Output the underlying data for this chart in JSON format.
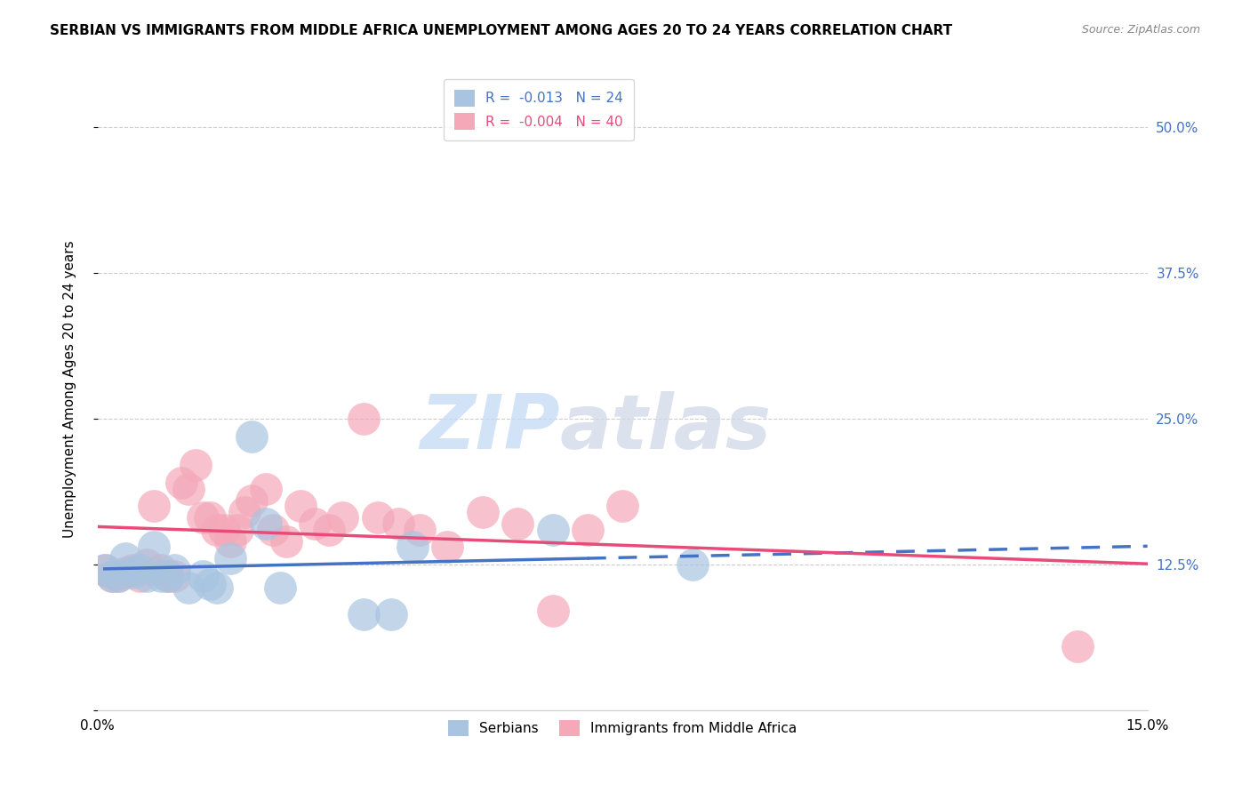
{
  "title": "SERBIAN VS IMMIGRANTS FROM MIDDLE AFRICA UNEMPLOYMENT AMONG AGES 20 TO 24 YEARS CORRELATION CHART",
  "source": "Source: ZipAtlas.com",
  "ylabel": "Unemployment Among Ages 20 to 24 years",
  "legend_r1": "R =  -0.013",
  "legend_n1": "N = 24",
  "legend_r2": "R =  -0.004",
  "legend_n2": "N = 40",
  "serbian_color": "#a8c4e0",
  "immigrant_color": "#f4a8b8",
  "trend_serbian_color": "#4472c4",
  "trend_immigrant_color": "#e84b7a",
  "watermark_zip": "ZIP",
  "watermark_atlas": "atlas",
  "serbians_x": [
    0.001,
    0.002,
    0.003,
    0.004,
    0.005,
    0.006,
    0.007,
    0.008,
    0.009,
    0.01,
    0.011,
    0.013,
    0.015,
    0.016,
    0.017,
    0.019,
    0.022,
    0.024,
    0.026,
    0.038,
    0.042,
    0.045,
    0.065,
    0.085
  ],
  "serbians_y": [
    0.12,
    0.115,
    0.115,
    0.13,
    0.118,
    0.12,
    0.115,
    0.14,
    0.115,
    0.115,
    0.12,
    0.105,
    0.115,
    0.108,
    0.105,
    0.13,
    0.235,
    0.16,
    0.105,
    0.082,
    0.082,
    0.14,
    0.155,
    0.125
  ],
  "immigrants_x": [
    0.001,
    0.002,
    0.003,
    0.004,
    0.005,
    0.006,
    0.007,
    0.008,
    0.009,
    0.01,
    0.011,
    0.012,
    0.013,
    0.014,
    0.015,
    0.016,
    0.017,
    0.018,
    0.019,
    0.02,
    0.021,
    0.022,
    0.024,
    0.025,
    0.027,
    0.029,
    0.031,
    0.033,
    0.035,
    0.038,
    0.04,
    0.043,
    0.046,
    0.05,
    0.055,
    0.06,
    0.065,
    0.07,
    0.075,
    0.14
  ],
  "immigrants_y": [
    0.12,
    0.115,
    0.115,
    0.118,
    0.12,
    0.115,
    0.125,
    0.175,
    0.12,
    0.115,
    0.115,
    0.195,
    0.19,
    0.21,
    0.165,
    0.165,
    0.155,
    0.155,
    0.145,
    0.155,
    0.17,
    0.18,
    0.19,
    0.155,
    0.145,
    0.175,
    0.16,
    0.155,
    0.165,
    0.25,
    0.165,
    0.16,
    0.155,
    0.14,
    0.17,
    0.16,
    0.085,
    0.155,
    0.175,
    0.055
  ],
  "xlim": [
    0.0,
    0.15
  ],
  "ylim": [
    0.0,
    0.55
  ],
  "trend_split": 0.07
}
